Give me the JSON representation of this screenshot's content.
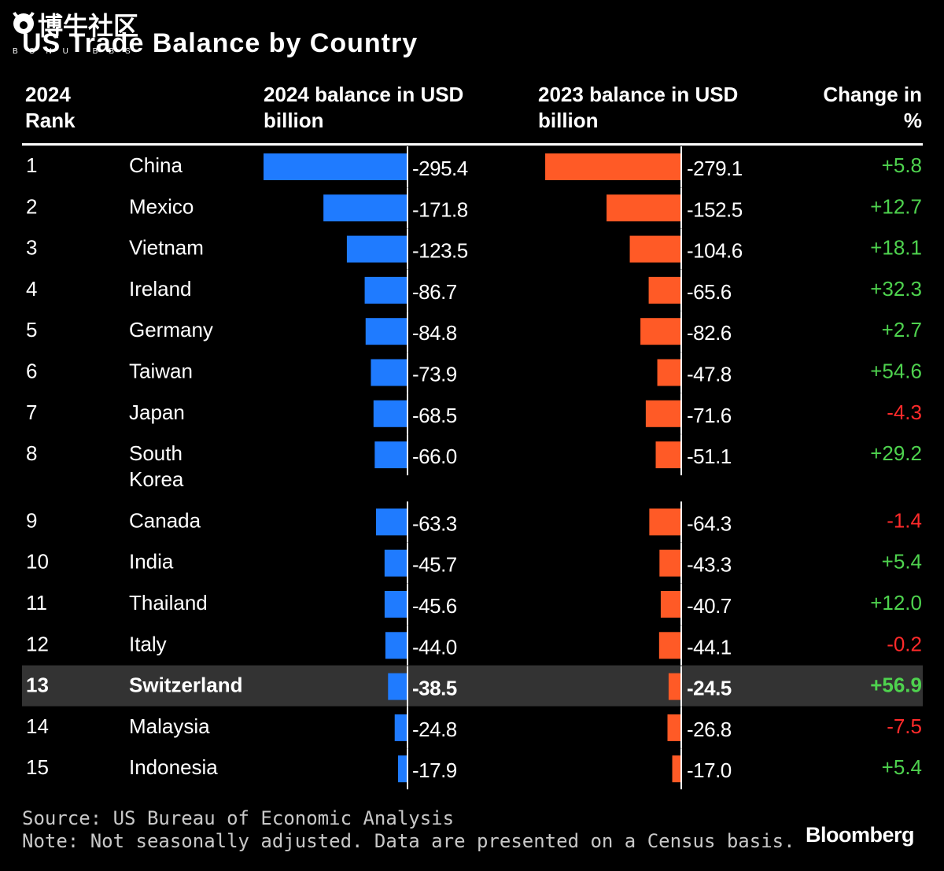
{
  "title": "US Trade Balance by Country",
  "watermark": {
    "text": "博牛社区",
    "sub": "BONU BBS"
  },
  "headers": {
    "rank": [
      "2024",
      "Rank"
    ],
    "bal2024": [
      "2024 balance in USD",
      "billion"
    ],
    "bal2023": [
      "2023 balance in USD",
      "billion"
    ],
    "change": [
      "Change in",
      "%"
    ]
  },
  "colors": {
    "bar2024": "#1f7bff",
    "bar2023": "#ff5a26",
    "positive": "#4ed24e",
    "negative": "#ff2a2a",
    "highlight": "#333333"
  },
  "chart_data": {
    "type": "bar",
    "title": "US Trade Balance by Country",
    "highlight_country": "Switzerland",
    "series": [
      {
        "name": "2024 balance in USD billion",
        "values": [
          -295.4,
          -171.8,
          -123.5,
          -86.7,
          -84.8,
          -73.9,
          -68.5,
          -66.0,
          -63.3,
          -45.7,
          -45.6,
          -44.0,
          -38.5,
          -24.8,
          -17.9
        ]
      },
      {
        "name": "2023 balance in USD billion",
        "values": [
          -279.1,
          -152.5,
          -104.6,
          -65.6,
          -82.6,
          -47.8,
          -71.6,
          -51.1,
          -64.3,
          -43.3,
          -40.7,
          -44.1,
          -24.5,
          -26.8,
          -17.0
        ]
      },
      {
        "name": "Change in %",
        "values": [
          5.8,
          12.7,
          18.1,
          32.3,
          2.7,
          54.6,
          -4.3,
          29.2,
          -1.4,
          5.4,
          12.0,
          -0.2,
          56.9,
          -7.5,
          5.4
        ]
      }
    ],
    "rows": [
      {
        "rank": "1",
        "country": [
          "China"
        ],
        "v2024": -295.4,
        "l2024": "-295.4",
        "v2023": -279.1,
        "l2023": "-279.1",
        "change": "+5.8"
      },
      {
        "rank": "2",
        "country": [
          "Mexico"
        ],
        "v2024": -171.8,
        "l2024": "-171.8",
        "v2023": -152.5,
        "l2023": "-152.5",
        "change": "+12.7"
      },
      {
        "rank": "3",
        "country": [
          "Vietnam"
        ],
        "v2024": -123.5,
        "l2024": "-123.5",
        "v2023": -104.6,
        "l2023": "-104.6",
        "change": "+18.1"
      },
      {
        "rank": "4",
        "country": [
          "Ireland"
        ],
        "v2024": -86.7,
        "l2024": "-86.7",
        "v2023": -65.6,
        "l2023": "-65.6",
        "change": "+32.3"
      },
      {
        "rank": "5",
        "country": [
          "Germany"
        ],
        "v2024": -84.8,
        "l2024": "-84.8",
        "v2023": -82.6,
        "l2023": "-82.6",
        "change": "+2.7"
      },
      {
        "rank": "6",
        "country": [
          "Taiwan"
        ],
        "v2024": -73.9,
        "l2024": "-73.9",
        "v2023": -47.8,
        "l2023": "-47.8",
        "change": "+54.6"
      },
      {
        "rank": "7",
        "country": [
          "Japan"
        ],
        "v2024": -68.5,
        "l2024": "-68.5",
        "v2023": -71.6,
        "l2023": "-71.6",
        "change": "-4.3"
      },
      {
        "rank": "8",
        "country": [
          "South",
          "Korea"
        ],
        "v2024": -66.0,
        "l2024": "-66.0",
        "v2023": -51.1,
        "l2023": "-51.1",
        "change": "+29.2"
      },
      {
        "rank": "9",
        "country": [
          "Canada"
        ],
        "v2024": -63.3,
        "l2024": "-63.3",
        "v2023": -64.3,
        "l2023": "-64.3",
        "change": "-1.4"
      },
      {
        "rank": "10",
        "country": [
          "India"
        ],
        "v2024": -45.7,
        "l2024": "-45.7",
        "v2023": -43.3,
        "l2023": "-43.3",
        "change": "+5.4"
      },
      {
        "rank": "11",
        "country": [
          "Thailand"
        ],
        "v2024": -45.6,
        "l2024": "-45.6",
        "v2023": -40.7,
        "l2023": "-40.7",
        "change": "+12.0"
      },
      {
        "rank": "12",
        "country": [
          "Italy"
        ],
        "v2024": -44.0,
        "l2024": "-44.0",
        "v2023": -44.1,
        "l2023": "-44.1",
        "change": "-0.2"
      },
      {
        "rank": "13",
        "country": [
          "Switzerland"
        ],
        "v2024": -38.5,
        "l2024": "-38.5",
        "v2023": -24.5,
        "l2023": "-24.5",
        "change": "+56.9"
      },
      {
        "rank": "14",
        "country": [
          "Malaysia"
        ],
        "v2024": -24.8,
        "l2024": "-24.8",
        "v2023": -26.8,
        "l2023": "-26.8",
        "change": "-7.5"
      },
      {
        "rank": "15",
        "country": [
          "Indonesia"
        ],
        "v2024": -17.9,
        "l2024": "-17.9",
        "v2023": -17.0,
        "l2023": "-17.0",
        "change": "+5.4"
      }
    ]
  },
  "footer": {
    "source": "Source: US Bureau of Economic Analysis",
    "note": "Note: Not seasonally adjusted. Data are presented on a Census basis.",
    "brand": "Bloomberg"
  }
}
